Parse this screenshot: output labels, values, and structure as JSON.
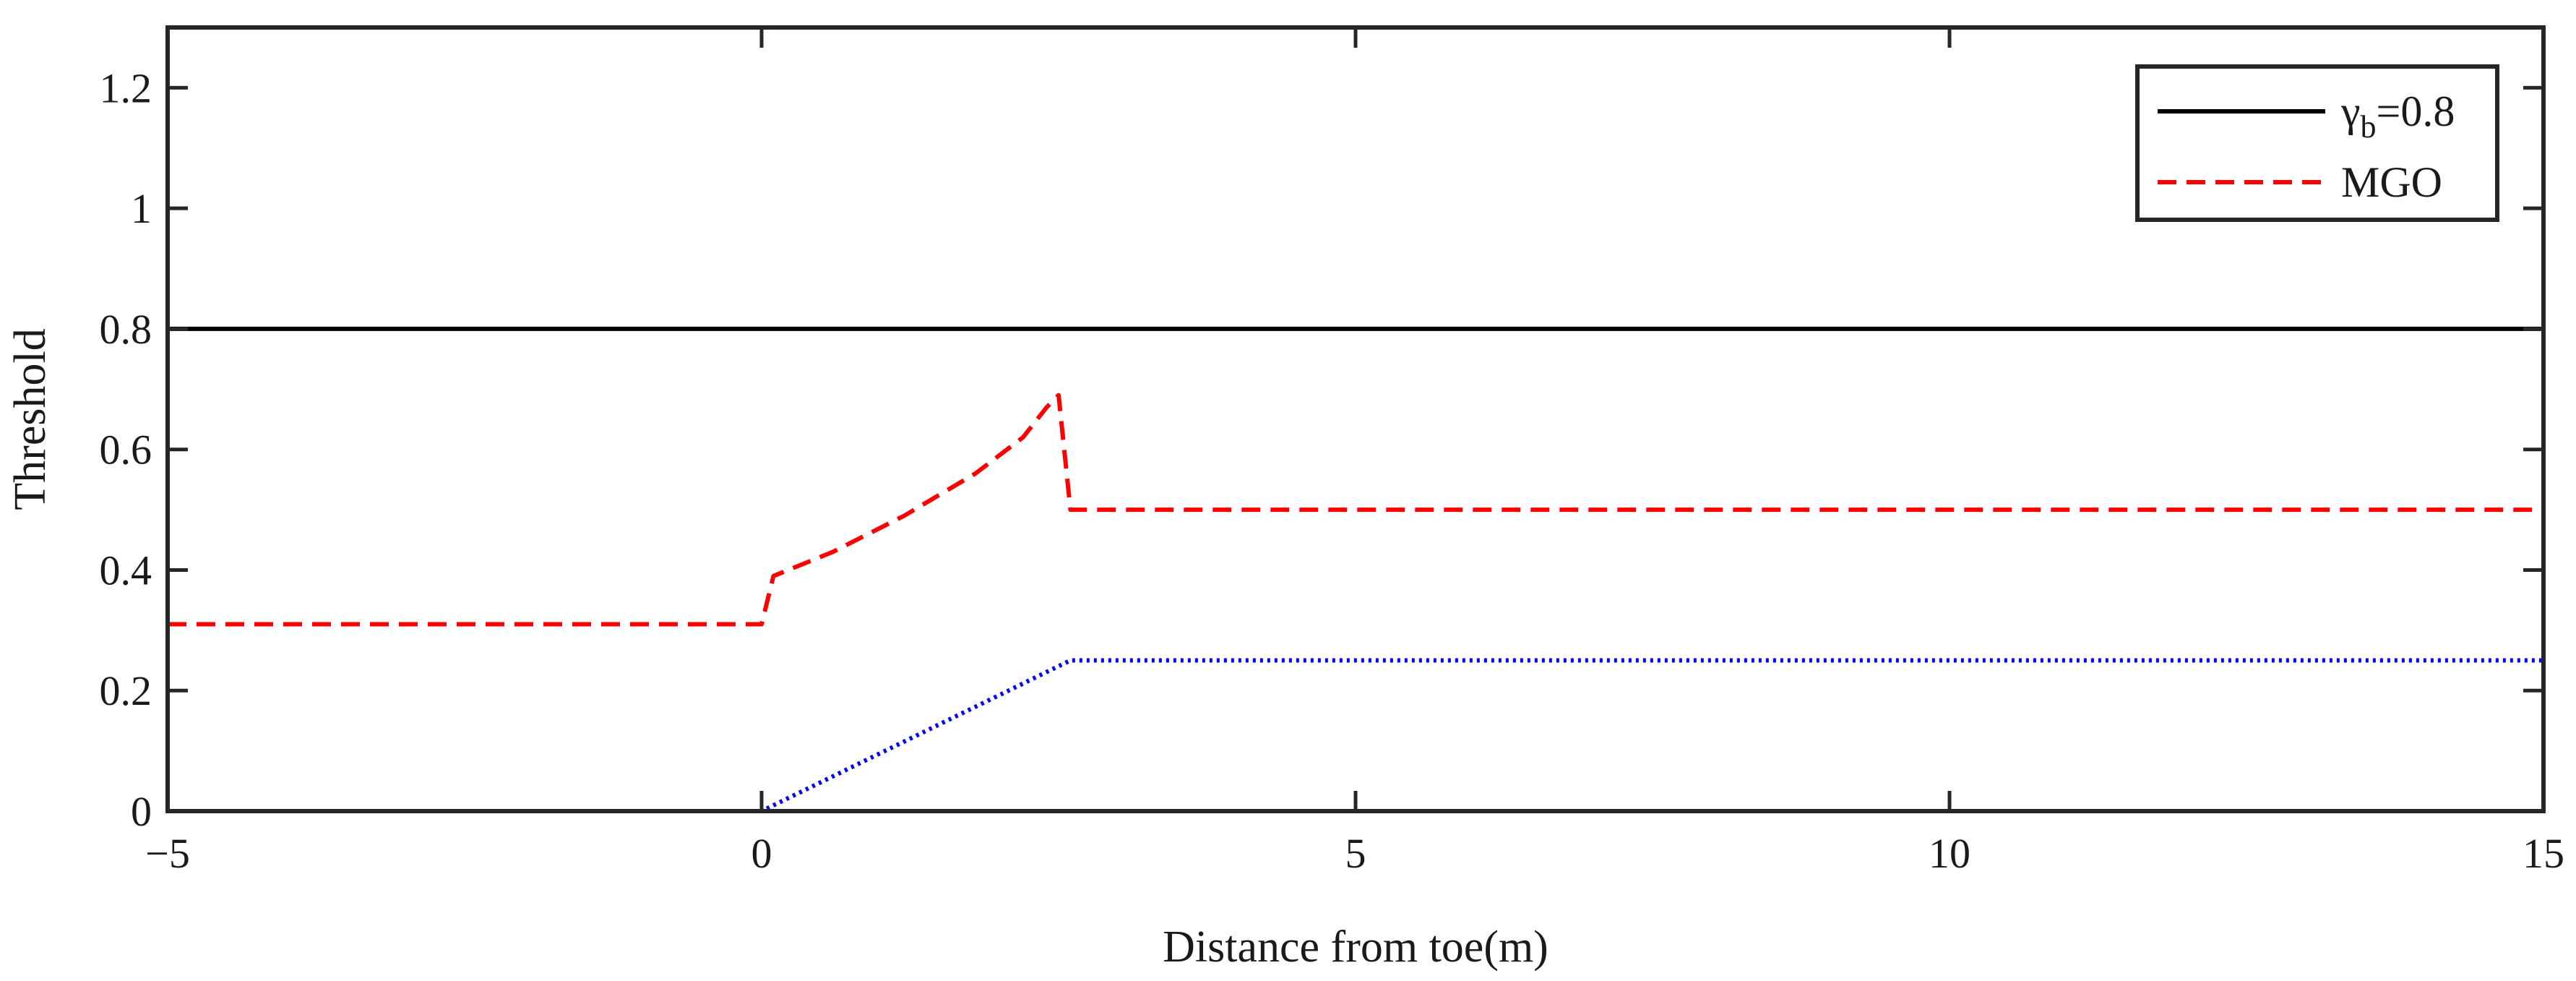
{
  "chart_data": {
    "type": "line",
    "title": "",
    "xlabel": "Distance from toe(m)",
    "ylabel": "Threshold",
    "xlim": [
      -5,
      15
    ],
    "ylim": [
      0,
      1.3
    ],
    "xticks": [
      -5,
      0,
      5,
      10,
      15
    ],
    "xtick_labels": [
      "−5",
      "0",
      "5",
      "10",
      "15"
    ],
    "yticks": [
      0,
      0.2,
      0.4,
      0.6,
      0.8,
      1.0,
      1.2
    ],
    "ytick_labels": [
      "0",
      "0.2",
      "0.4",
      "0.6",
      "0.8",
      "1",
      "1.2"
    ],
    "grid": false,
    "legend_position": "top-right",
    "series": [
      {
        "name": "γb=0.8",
        "legend_symbol": "γ",
        "legend_subscript": "b",
        "legend_suffix": "=0.8",
        "color": "#000000",
        "style": "solid",
        "in_legend": true,
        "x": [
          -5,
          15
        ],
        "y": [
          0.8,
          0.8
        ]
      },
      {
        "name": "MGO",
        "color": "#ff0000",
        "style": "dashed",
        "in_legend": true,
        "x": [
          -5,
          0,
          0.05,
          0.1,
          0.6,
          1.2,
          1.8,
          2.2,
          2.4,
          2.5,
          2.6,
          15
        ],
        "y": [
          0.31,
          0.31,
          0.35,
          0.39,
          0.43,
          0.49,
          0.56,
          0.62,
          0.67,
          0.69,
          0.5,
          0.5
        ]
      },
      {
        "name": "",
        "color": "#0000ff",
        "style": "dotted",
        "in_legend": false,
        "x": [
          -5,
          0,
          2.6,
          15
        ],
        "y": [
          0,
          0,
          0.25,
          0.25
        ]
      }
    ]
  }
}
